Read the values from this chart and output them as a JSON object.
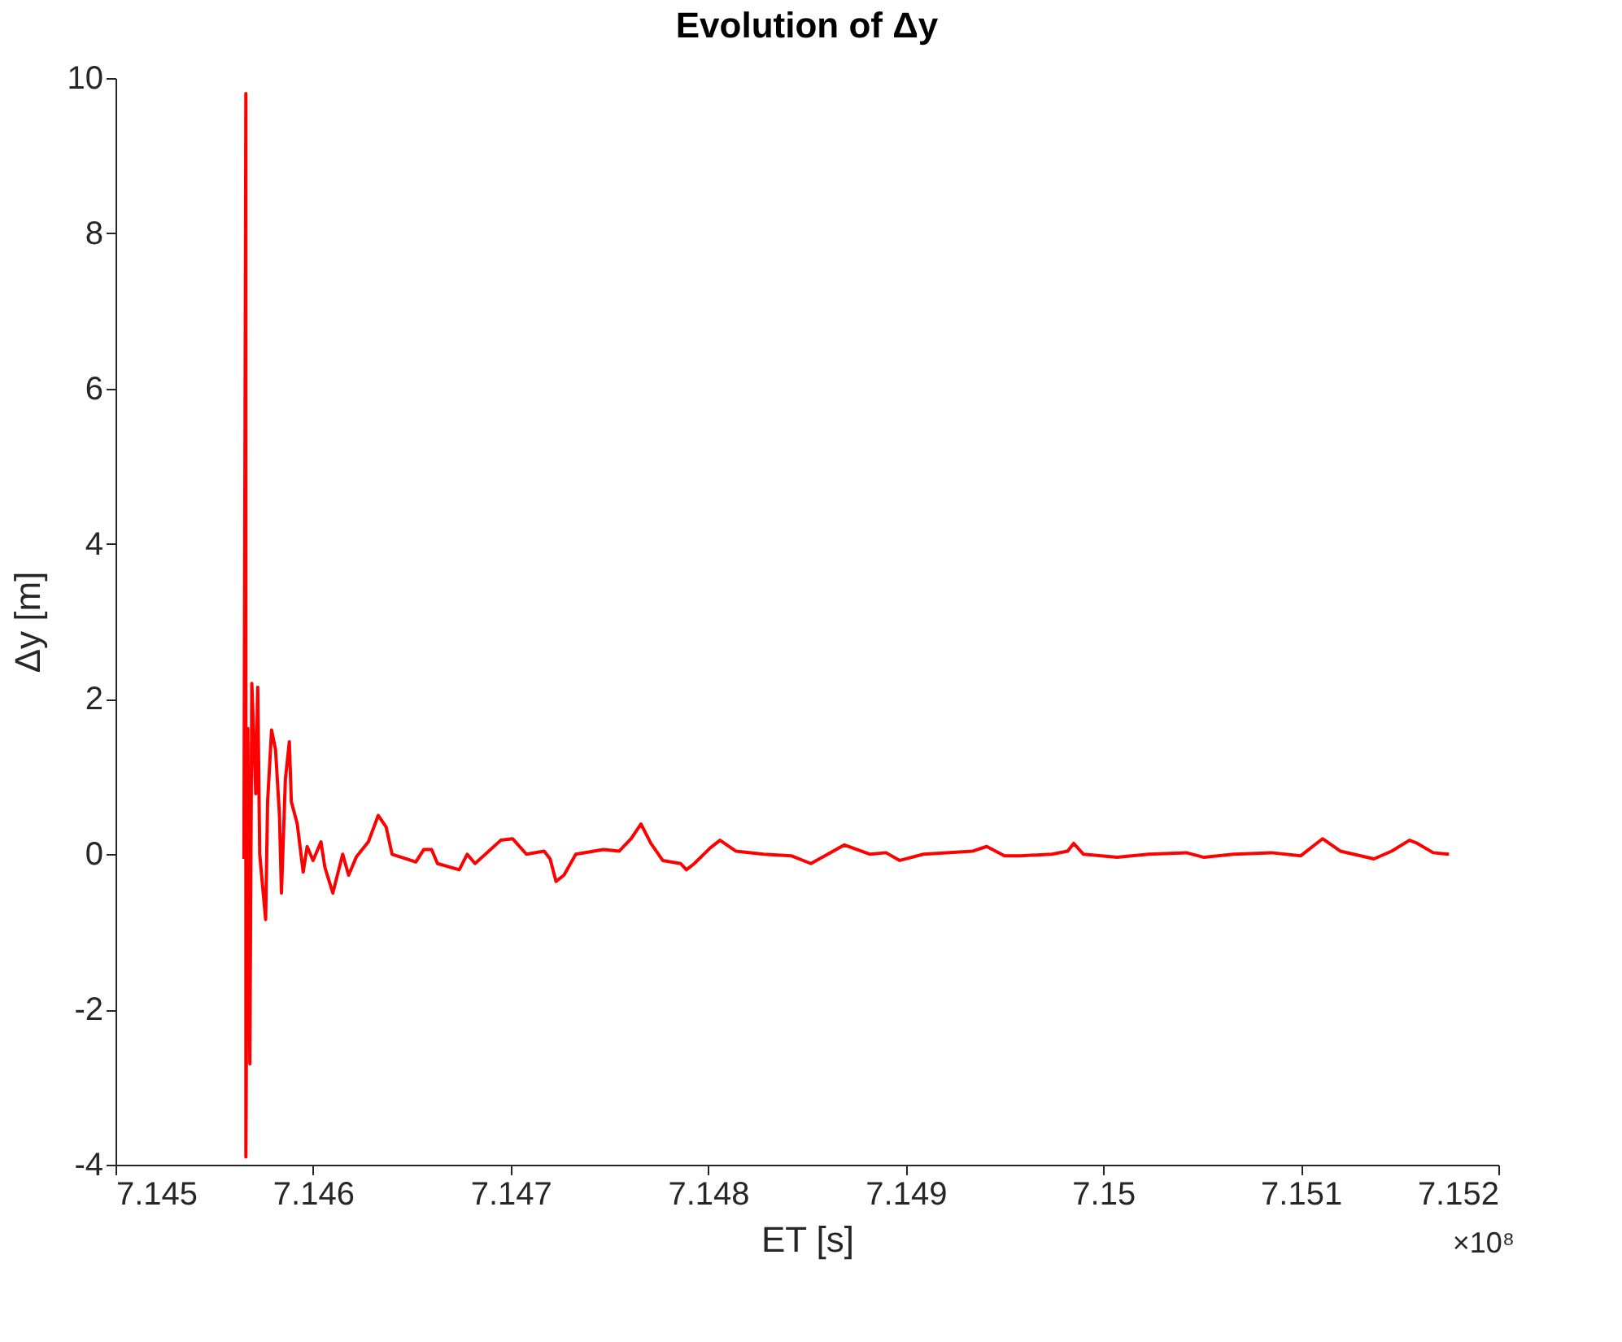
{
  "chart_data": {
    "type": "line",
    "title": "Evolution of Δy",
    "xlabel": "ET [s]",
    "ylabel": "Δy [m]",
    "annotations": [
      "×10⁸"
    ],
    "x": [
      7.14565,
      7.14566,
      7.14566,
      7.14567,
      7.14568,
      7.14569,
      7.14571,
      7.14572,
      7.14573,
      7.14576,
      7.14577,
      7.14579,
      7.14581,
      7.14583,
      7.14584,
      7.14586,
      7.14588,
      7.14589,
      7.14592,
      7.14595,
      7.14597,
      7.146,
      7.14604,
      7.14606,
      7.1461,
      7.14615,
      7.14618,
      7.14622,
      7.14628,
      7.14633,
      7.14637,
      7.1464,
      7.14652,
      7.14656,
      7.1466,
      7.14663,
      7.14674,
      7.14678,
      7.14682,
      7.14695,
      7.14701,
      7.14708,
      7.14717,
      7.1472,
      7.14723,
      7.14727,
      7.14733,
      7.14747,
      7.14755,
      7.14761,
      7.14766,
      7.14771,
      7.14777,
      7.14786,
      7.14789,
      7.14793,
      7.14801,
      7.14806,
      7.14814,
      7.14828,
      7.14842,
      7.14852,
      7.14869,
      7.14882,
      7.1489,
      7.14897,
      7.14909,
      7.14934,
      7.14941,
      7.1495,
      7.14958,
      7.14974,
      7.14982,
      7.14985,
      7.1499,
      7.15007,
      7.15023,
      7.15042,
      7.15051,
      7.15066,
      7.15085,
      7.151,
      7.15111,
      7.1512,
      7.15137,
      7.15146,
      7.15155,
      7.15159,
      7.15167,
      7.15175
    ],
    "series": [
      {
        "color": "#ff0000",
        "values": [
          -0.06,
          9.8,
          -3.9,
          1.62,
          -2.7,
          2.2,
          0.78,
          2.15,
          0.0,
          -0.84,
          0.68,
          1.6,
          1.35,
          0.5,
          -0.5,
          0.97,
          1.45,
          0.68,
          0.39,
          -0.23,
          0.1,
          -0.08,
          0.16,
          -0.17,
          -0.5,
          0.0,
          -0.27,
          -0.03,
          0.16,
          0.5,
          0.35,
          0.0,
          -0.1,
          0.06,
          0.06,
          -0.12,
          -0.2,
          0,
          -0.12,
          0.18,
          0.2,
          0,
          0.04,
          -0.06,
          -0.35,
          -0.27,
          0,
          0.06,
          0.04,
          0.2,
          0.39,
          0.14,
          -0.08,
          -0.12,
          -0.2,
          -0.12,
          0.08,
          0.18,
          0.04,
          0,
          -0.02,
          -0.12,
          0.12,
          0,
          0.02,
          -0.08,
          0,
          0.04,
          0.1,
          -0.02,
          -0.02,
          0,
          0.04,
          0.14,
          0,
          -0.04,
          0,
          0.02,
          -0.04,
          0,
          0.02,
          -0.02,
          0.2,
          0.04,
          -0.06,
          0.04,
          0.18,
          0.14,
          0.02,
          0
        ]
      }
    ],
    "xlim": [
      7.145,
      7.152
    ],
    "xticks": [
      7.145,
      7.146,
      7.147,
      7.148,
      7.149,
      7.15,
      7.151,
      7.152
    ],
    "ylim": [
      -4,
      10
    ],
    "yticks": [
      -4,
      -2,
      0,
      2,
      4,
      6,
      8,
      10
    ],
    "grid": false,
    "marker": "none",
    "line_style": "solid"
  }
}
